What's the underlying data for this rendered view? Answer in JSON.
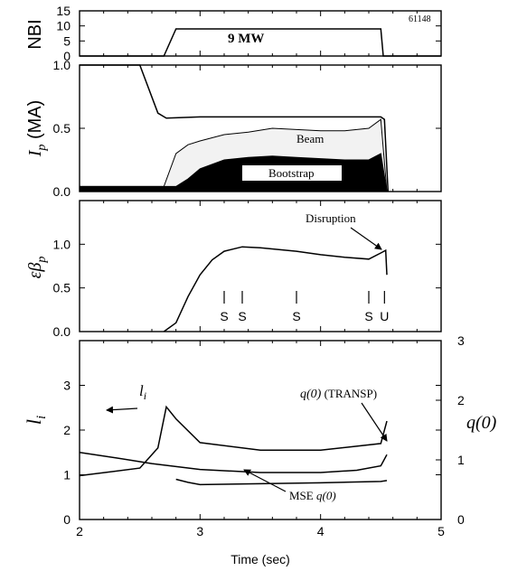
{
  "chart_data": [
    {
      "type": "line",
      "panel": "NBI",
      "ylabel": "NBI",
      "ylim": [
        0,
        15
      ],
      "yticks": [
        "0",
        "5",
        "10",
        "15"
      ],
      "shot": "61148",
      "annotation": "9 MW",
      "series": [
        {
          "x": [
            2.0,
            2.7,
            2.8,
            4.5,
            4.52,
            5.0
          ],
          "y": [
            0,
            0,
            9,
            9,
            0,
            0
          ]
        }
      ]
    },
    {
      "type": "area",
      "panel": "Ip",
      "ylabel": "Ip (MA)",
      "ylabel_main": "I",
      "ylabel_sub": "p",
      "ylabel_unit": "(MA)",
      "ylim": [
        0,
        1.0
      ],
      "yticks": [
        "0.0",
        "0.5",
        "1.0"
      ],
      "annotations": [
        "Beam",
        "Bootstrap"
      ],
      "series": [
        {
          "x": [
            2.0,
            2.5,
            2.65,
            2.72,
            3.0,
            4.0,
            4.5,
            4.53,
            4.56
          ],
          "y": [
            1.0,
            1.0,
            0.62,
            0.58,
            0.59,
            0.59,
            0.59,
            0.57,
            0.0
          ]
        },
        {
          "name": "Beam",
          "x": [
            2.0,
            2.7,
            2.8,
            2.9,
            3.0,
            3.2,
            3.4,
            3.6,
            3.8,
            4.0,
            4.2,
            4.4,
            4.5,
            4.55
          ],
          "y": [
            0.04,
            0.04,
            0.3,
            0.37,
            0.4,
            0.45,
            0.47,
            0.5,
            0.49,
            0.48,
            0.48,
            0.5,
            0.57,
            0.0
          ]
        },
        {
          "name": "Bootstrap",
          "x": [
            2.0,
            2.8,
            2.9,
            3.0,
            3.2,
            3.4,
            3.6,
            3.8,
            4.0,
            4.2,
            4.4,
            4.5,
            4.55
          ],
          "y": [
            0.04,
            0.04,
            0.1,
            0.18,
            0.25,
            0.27,
            0.28,
            0.27,
            0.26,
            0.25,
            0.25,
            0.3,
            0.0
          ]
        }
      ]
    },
    {
      "type": "line",
      "panel": "epsilon-beta-p",
      "ylabel": "εβp",
      "ylabel_main": "εβ",
      "ylabel_sub": "p",
      "ylim": [
        0,
        1.5
      ],
      "yticks": [
        "0.0",
        "0.5",
        "1.0"
      ],
      "annotation": "Disruption",
      "markers": [
        {
          "x": 3.2,
          "label": "S"
        },
        {
          "x": 3.35,
          "label": "S"
        },
        {
          "x": 3.8,
          "label": "S"
        },
        {
          "x": 4.4,
          "label": "S"
        },
        {
          "x": 4.53,
          "label": "U"
        }
      ],
      "series": [
        {
          "x": [
            2.7,
            2.8,
            2.9,
            3.0,
            3.1,
            3.2,
            3.35,
            3.5,
            3.8,
            4.0,
            4.2,
            4.4,
            4.5,
            4.54,
            4.55
          ],
          "y": [
            0.0,
            0.1,
            0.4,
            0.65,
            0.82,
            0.92,
            0.97,
            0.96,
            0.92,
            0.88,
            0.85,
            0.83,
            0.9,
            0.93,
            0.65
          ]
        }
      ]
    },
    {
      "type": "line",
      "panel": "li-q0",
      "xlabel": "Time (sec)",
      "xlim": [
        2,
        5
      ],
      "xticks": [
        "2",
        "3",
        "4",
        "5"
      ],
      "ylabel": "li",
      "ylabel_main": "l",
      "ylabel_sub": "i",
      "ylim": [
        0,
        4
      ],
      "yticks": [
        "0",
        "1",
        "2",
        "3"
      ],
      "y2label": "q(0)",
      "y2ticks": [
        "0",
        "1",
        "2",
        "3"
      ],
      "annotations": {
        "li": "l",
        "li_sub": "i",
        "q0_transp": "q(0)",
        "q0_transp_src": "(TRANSP)",
        "mse_q0": "MSE",
        "mse_q0_var": "q(0)"
      },
      "series": [
        {
          "name": "li",
          "x": [
            2.0,
            2.5,
            2.65,
            2.72,
            2.8,
            3.0,
            3.5,
            4.0,
            4.5,
            4.55
          ],
          "y": [
            0.98,
            1.15,
            1.6,
            2.52,
            2.25,
            1.72,
            1.55,
            1.55,
            1.7,
            2.2
          ]
        },
        {
          "name": "q(0) (TRANSP)",
          "x": [
            2.0,
            2.3,
            2.6,
            3.0,
            3.5,
            4.0,
            4.3,
            4.5,
            4.55
          ],
          "y": [
            1.5,
            1.38,
            1.25,
            1.12,
            1.05,
            1.05,
            1.1,
            1.2,
            1.45
          ]
        },
        {
          "name": "MSE q(0)",
          "x": [
            2.8,
            2.9,
            3.0,
            3.5,
            4.0,
            4.5,
            4.55
          ],
          "y": [
            0.9,
            0.83,
            0.78,
            0.8,
            0.82,
            0.85,
            0.87
          ]
        }
      ]
    }
  ]
}
